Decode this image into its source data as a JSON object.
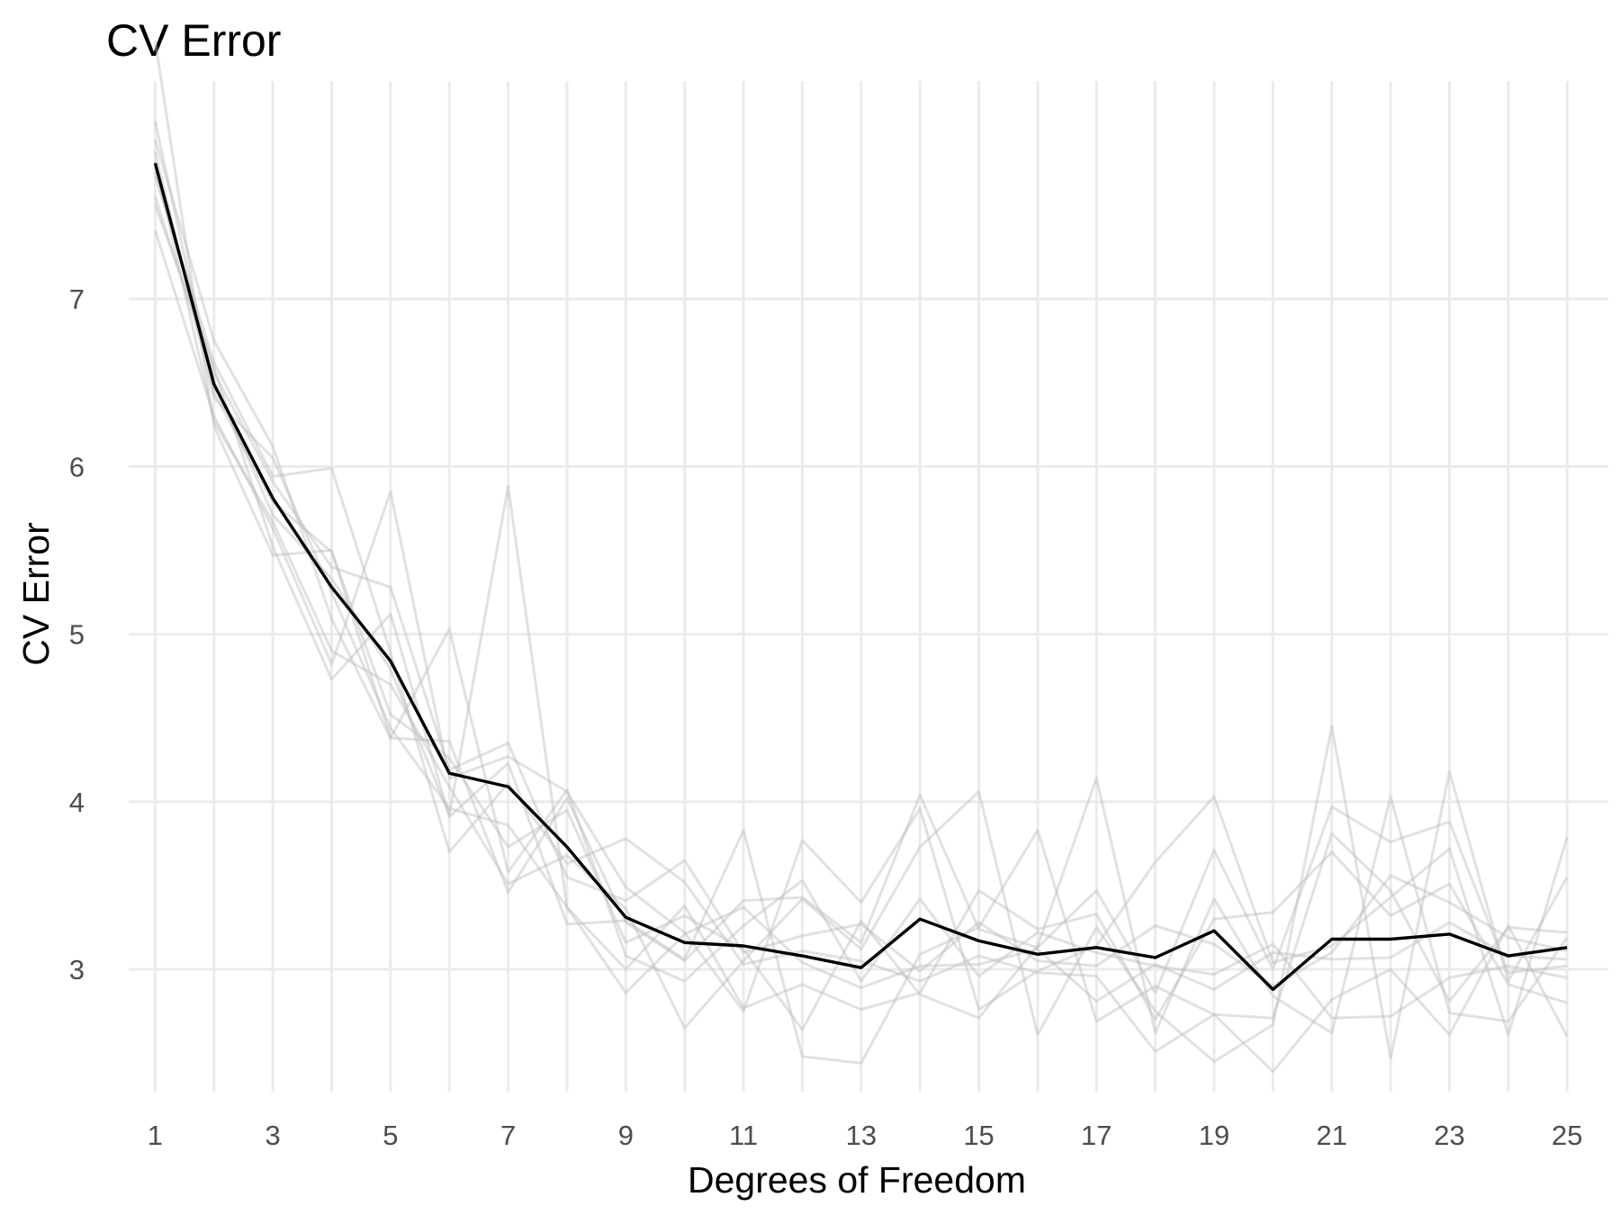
{
  "chart_data": {
    "type": "line",
    "title": "CV Error",
    "xlabel": "Degrees of Freedom",
    "ylabel": "CV Error",
    "x": [
      1,
      2,
      3,
      4,
      5,
      6,
      7,
      8,
      9,
      10,
      11,
      12,
      13,
      14,
      15,
      16,
      17,
      18,
      19,
      20,
      21,
      22,
      23,
      24,
      25
    ],
    "xlim": [
      0.55,
      25.7
    ],
    "ylim": [
      2.27,
      8.3
    ],
    "x_ticks": [
      "1",
      "3",
      "5",
      "7",
      "9",
      "11",
      "13",
      "15",
      "17",
      "19",
      "21",
      "23",
      "25"
    ],
    "y_ticks": [
      "3",
      "4",
      "5",
      "6",
      "7"
    ],
    "grid": true,
    "mean_series": {
      "color": "#000000",
      "values": [
        7.81,
        6.49,
        5.81,
        5.28,
        4.84,
        4.17,
        4.09,
        3.73,
        3.31,
        3.16,
        3.14,
        3.08,
        3.01,
        3.3,
        3.17,
        3.09,
        3.13,
        3.07,
        3.23,
        2.88,
        3.18,
        3.18,
        3.21,
        3.08,
        3.13
      ]
    },
    "fold_series_color": "#bdbdbd",
    "series": [
      {
        "values": [
          8.54,
          6.24,
          5.47,
          5.5,
          4.38,
          4.36,
          3.46,
          4.02,
          3.28,
          3.05,
          3.41,
          3.43,
          3.16,
          4.04,
          3.24,
          3.13,
          3.47,
          2.86,
          3.71,
          3.0,
          3.97,
          3.76,
          3.88,
          2.98,
          3.02
        ]
      },
      {
        "values": [
          7.41,
          6.3,
          5.63,
          4.82,
          5.85,
          4.14,
          4.27,
          4.06,
          3.49,
          3.22,
          2.75,
          3.77,
          3.4,
          3.96,
          2.76,
          2.99,
          3.14,
          3.64,
          4.03,
          3.04,
          3.14,
          3.43,
          3.72,
          2.61,
          3.79
        ]
      },
      {
        "values": [
          7.73,
          6.62,
          5.94,
          5.99,
          4.89,
          3.7,
          4.11,
          3.63,
          3.78,
          3.52,
          3.03,
          3.11,
          3.05,
          2.93,
          3.08,
          2.98,
          2.96,
          2.51,
          2.73,
          2.71,
          3.81,
          3.47,
          2.81,
          3.25,
          3.22
        ]
      },
      {
        "values": [
          7.56,
          6.59,
          5.52,
          4.73,
          5.12,
          3.91,
          4.23,
          3.27,
          3.29,
          3.06,
          3.83,
          2.48,
          2.44,
          3.09,
          3.25,
          3.83,
          2.69,
          2.9,
          2.73,
          2.39,
          2.82,
          3.0,
          2.61,
          3.26,
          2.6
        ]
      },
      {
        "values": [
          8.06,
          6.44,
          5.79,
          5.49,
          4.52,
          4.26,
          3.73,
          3.95,
          3.16,
          3.32,
          3.12,
          2.64,
          3.29,
          2.85,
          2.71,
          3.14,
          4.14,
          2.62,
          3.42,
          2.84,
          2.62,
          4.03,
          2.74,
          2.69,
          3.19
        ]
      },
      {
        "values": [
          7.82,
          6.27,
          5.67,
          4.9,
          4.7,
          4.09,
          3.51,
          3.68,
          3.36,
          2.65,
          3.05,
          3.42,
          3.12,
          3.73,
          4.06,
          2.61,
          3.25,
          2.75,
          2.45,
          2.67,
          4.45,
          2.47,
          4.18,
          2.93,
          3.55
        ]
      },
      {
        "values": [
          7.95,
          6.75,
          6.12,
          5.09,
          4.38,
          5.03,
          3.58,
          4.07,
          3.08,
          2.93,
          3.26,
          3.53,
          2.93,
          3.42,
          2.96,
          3.22,
          3.1,
          3.02,
          2.97,
          3.15,
          2.71,
          2.72,
          2.95,
          3.02,
          2.95
        ]
      },
      {
        "values": [
          7.88,
          6.41,
          6.05,
          5.25,
          4.44,
          3.96,
          3.86,
          3.37,
          3.0,
          3.38,
          2.77,
          2.91,
          2.76,
          2.86,
          3.47,
          3.24,
          3.33,
          2.7,
          3.3,
          3.34,
          3.7,
          3.32,
          3.51,
          2.91,
          2.8
        ]
      },
      {
        "values": [
          7.61,
          6.51,
          5.71,
          5.33,
          4.79,
          3.92,
          5.88,
          3.37,
          2.86,
          3.21,
          3.37,
          3.04,
          2.89,
          3.02,
          3.03,
          3.12,
          2.81,
          3.03,
          2.88,
          3.1,
          3.06,
          3.07,
          3.28,
          3.08,
          3.06
        ]
      },
      {
        "values": [
          7.76,
          6.56,
          5.91,
          5.4,
          5.28,
          4.19,
          4.35,
          3.55,
          3.41,
          3.65,
          3.1,
          3.2,
          3.27,
          2.99,
          3.28,
          3.05,
          3.02,
          3.26,
          3.15,
          2.9,
          3.1,
          3.56,
          3.4,
          3.19,
          3.11
        ]
      }
    ]
  }
}
